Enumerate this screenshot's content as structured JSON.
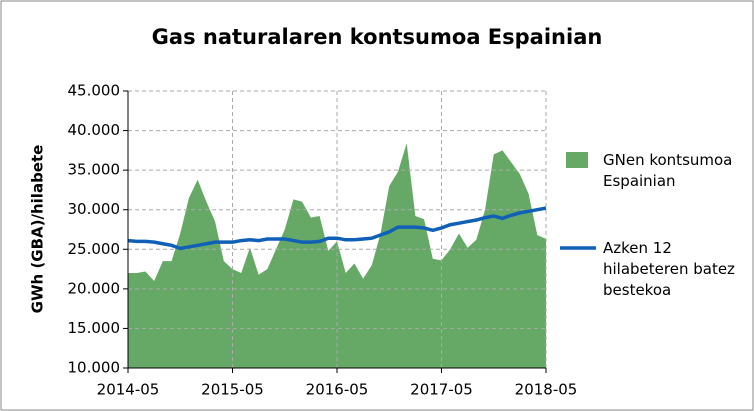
{
  "chart_data": {
    "type": "area_line",
    "title": "Gas naturalaren kontsumoa Espainian",
    "ylabel": "GWh (GBA)/hilabete",
    "categories": [
      "2014-05",
      null,
      null,
      null,
      null,
      null,
      null,
      null,
      null,
      null,
      null,
      null,
      "2015-05",
      null,
      null,
      null,
      null,
      null,
      null,
      null,
      null,
      null,
      null,
      null,
      "2016-05",
      null,
      null,
      null,
      null,
      null,
      null,
      null,
      null,
      null,
      null,
      null,
      "2017-05",
      null,
      null,
      null,
      null,
      null,
      null,
      null,
      null,
      null,
      null,
      null,
      "2018-05"
    ],
    "series": [
      {
        "name": "GNen kontsumoa Espainian",
        "kind": "area",
        "color": "#66a866",
        "values": [
          22000,
          22000,
          22200,
          21000,
          23500,
          23500,
          27000,
          31500,
          33800,
          31000,
          28500,
          23500,
          22500,
          22000,
          25200,
          21800,
          22500,
          25000,
          27500,
          31300,
          31000,
          29000,
          29200,
          24800,
          26000,
          22000,
          23200,
          21300,
          23000,
          27000,
          33000,
          34800,
          38400,
          29200,
          28800,
          23800,
          23600,
          25000,
          27000,
          25200,
          26200,
          30000,
          37000,
          37500,
          36000,
          34500,
          32000,
          26800,
          26300
        ]
      },
      {
        "name": "Azken 12 hilabeteren batez bestekoa",
        "kind": "line",
        "color": "#1060b8",
        "values": [
          26100,
          26000,
          26000,
          25900,
          25700,
          25500,
          25100,
          25300,
          25500,
          25700,
          25900,
          25900,
          25900,
          26100,
          26200,
          26100,
          26300,
          26300,
          26300,
          26100,
          25900,
          25900,
          26000,
          26400,
          26400,
          26200,
          26200,
          26300,
          26400,
          26800,
          27200,
          27800,
          27800,
          27800,
          27700,
          27400,
          27700,
          28100,
          28300,
          28500,
          28700,
          29000,
          29200,
          28900,
          29300,
          29600,
          29800,
          30000,
          30200
        ]
      }
    ],
    "ylim": [
      10000,
      45000
    ],
    "yticks": [
      {
        "value": 10000,
        "label": "10.000"
      },
      {
        "value": 15000,
        "label": "15.000"
      },
      {
        "value": 20000,
        "label": "20.000"
      },
      {
        "value": 25000,
        "label": "25.000"
      },
      {
        "value": 30000,
        "label": "30.000"
      },
      {
        "value": 35000,
        "label": "35.000"
      },
      {
        "value": 40000,
        "label": "40.000"
      },
      {
        "value": 45000,
        "label": "45.000"
      }
    ],
    "grid": true,
    "legend": "right"
  }
}
